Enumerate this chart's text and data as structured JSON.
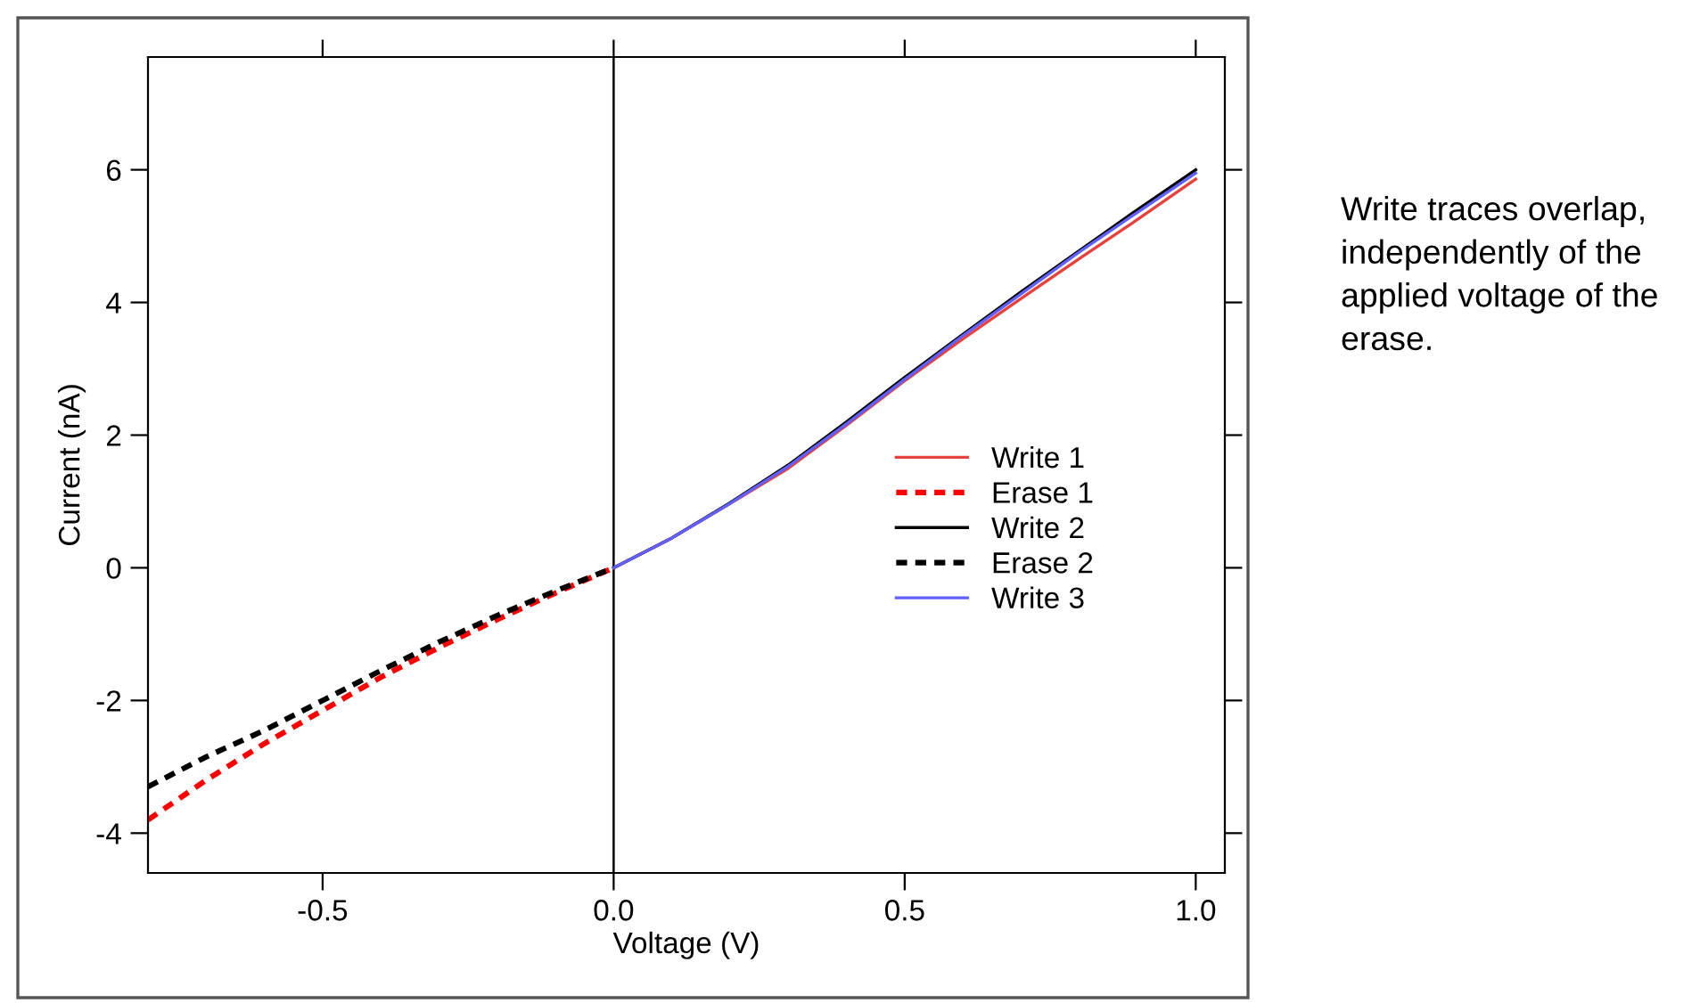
{
  "chart_data": {
    "type": "line",
    "xlabel": "Voltage (V)",
    "ylabel": "Current (nA)",
    "xlim": [
      -0.8,
      1.05
    ],
    "ylim": [
      -4.6,
      7.7
    ],
    "xticks": [
      {
        "value": -0.5,
        "label": "-0.5"
      },
      {
        "value": 0,
        "label": "0.0"
      },
      {
        "value": 0.5,
        "label": "0.5"
      },
      {
        "value": 1.0,
        "label": "1.0"
      }
    ],
    "yticks": [
      {
        "value": -4,
        "label": "-4"
      },
      {
        "value": -2,
        "label": "-2"
      },
      0,
      2,
      4,
      6
    ],
    "grid": false,
    "legend": "right",
    "line_style": "solid",
    "ref_lines": [
      {
        "axis": "x",
        "value": 0,
        "color": "#000000"
      }
    ],
    "series": [
      {
        "name": "Write 1",
        "color": "#e8403a",
        "x": [
          0,
          0.1,
          0.2,
          0.3,
          0.4,
          0.5,
          0.6,
          0.7,
          0.8,
          0.9,
          1.0
        ],
        "values": [
          0,
          0.45,
          0.97,
          1.5,
          2.15,
          2.82,
          3.45,
          4.06,
          4.66,
          5.25,
          5.86
        ]
      },
      {
        "name": "Erase 1",
        "color": "#ff0000",
        "line_style": "dashed",
        "x": [
          -0.8,
          -0.7,
          -0.6,
          -0.5,
          -0.4,
          -0.3,
          -0.2,
          -0.1,
          0
        ],
        "values": [
          -3.8,
          -3.2,
          -2.65,
          -2.15,
          -1.65,
          -1.2,
          -0.78,
          -0.38,
          0
        ]
      },
      {
        "name": "Write 2",
        "color": "#000000",
        "x": [
          0,
          0.1,
          0.2,
          0.3,
          0.4,
          0.5,
          0.6,
          0.7,
          0.8,
          0.9,
          1.0
        ],
        "values": [
          0,
          0.45,
          0.98,
          1.55,
          2.2,
          2.87,
          3.52,
          4.16,
          4.78,
          5.4,
          6.0
        ]
      },
      {
        "name": "Erase 2",
        "color": "#000000",
        "line_style": "dashed",
        "x": [
          -0.8,
          -0.7,
          -0.6,
          -0.5,
          -0.4,
          -0.3,
          -0.2,
          -0.1,
          0
        ],
        "values": [
          -3.3,
          -2.85,
          -2.45,
          -2.0,
          -1.55,
          -1.12,
          -0.72,
          -0.35,
          0
        ]
      },
      {
        "name": "Write 3",
        "color": "#6060ff",
        "x": [
          0,
          0.1,
          0.2,
          0.3,
          0.4,
          0.5,
          0.6,
          0.7,
          0.8,
          0.9,
          1.0
        ],
        "values": [
          0,
          0.45,
          0.97,
          1.53,
          2.17,
          2.84,
          3.5,
          4.13,
          4.76,
          5.36,
          5.95
        ]
      }
    ],
    "annotations": [
      "Write traces overlap, independently of the applied voltage of the erase."
    ]
  }
}
